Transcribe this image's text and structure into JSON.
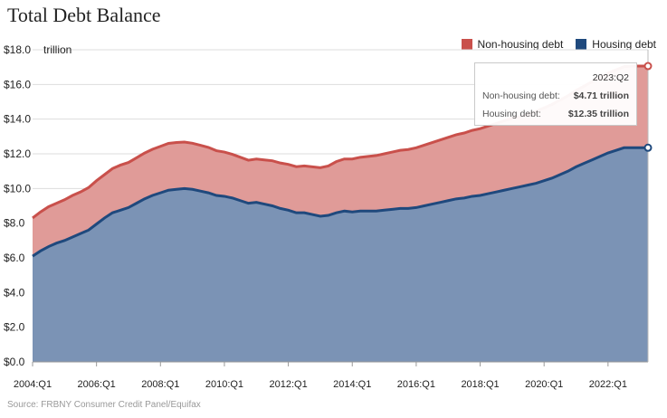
{
  "title": "Total Debt Balance",
  "source": "Source: FRBNY Consumer Credit Panel/Equifax",
  "legend": [
    {
      "label": "Non-housing debt",
      "color": "#c9504b"
    },
    {
      "label": "Housing debt",
      "color": "#1f497d"
    }
  ],
  "tooltip": {
    "period": "2023:Q2",
    "rows": [
      {
        "label": "Non-housing debt:",
        "value": "$4.71 trillion"
      },
      {
        "label": "Housing debt:",
        "value": "$12.35 trillion"
      }
    ]
  },
  "chart_data": {
    "type": "area",
    "stacked": true,
    "ylabel": "trillion",
    "ylim": [
      0,
      18
    ],
    "yticks": [
      "$0.0",
      "$2.0",
      "$4.0",
      "$6.0",
      "$8.0",
      "$10.0",
      "$12.0",
      "$14.0",
      "$16.0",
      "$18.0"
    ],
    "xticks": [
      "2004:Q1",
      "2006:Q1",
      "2008:Q1",
      "2010:Q1",
      "2012:Q1",
      "2014:Q1",
      "2016:Q1",
      "2018:Q1",
      "2020:Q1",
      "2022:Q1"
    ],
    "x_start": "2004:Q1",
    "x_end": "2023:Q2",
    "series": [
      {
        "name": "Housing debt",
        "color": "#1f497d",
        "fill": "#7b93b5",
        "values": [
          6.1,
          6.4,
          6.65,
          6.85,
          7.0,
          7.2,
          7.4,
          7.6,
          7.95,
          8.3,
          8.6,
          8.75,
          8.9,
          9.15,
          9.4,
          9.6,
          9.75,
          9.9,
          9.95,
          10.0,
          9.95,
          9.85,
          9.75,
          9.6,
          9.55,
          9.45,
          9.3,
          9.15,
          9.2,
          9.1,
          9.0,
          8.85,
          8.75,
          8.6,
          8.6,
          8.5,
          8.4,
          8.45,
          8.6,
          8.7,
          8.65,
          8.7,
          8.7,
          8.7,
          8.75,
          8.8,
          8.85,
          8.85,
          8.9,
          9.0,
          9.1,
          9.2,
          9.3,
          9.4,
          9.45,
          9.55,
          9.6,
          9.7,
          9.8,
          9.9,
          10.0,
          10.1,
          10.2,
          10.3,
          10.45,
          10.6,
          10.8,
          11.0,
          11.25,
          11.45,
          11.65,
          11.85,
          12.05,
          12.2,
          12.35,
          12.35,
          12.35,
          12.35
        ]
      },
      {
        "name": "Non-housing debt",
        "color": "#c9504b",
        "fill": "#e09b98",
        "values": [
          2.2,
          2.25,
          2.3,
          2.3,
          2.35,
          2.4,
          2.4,
          2.45,
          2.5,
          2.5,
          2.55,
          2.6,
          2.6,
          2.62,
          2.64,
          2.66,
          2.68,
          2.7,
          2.7,
          2.68,
          2.66,
          2.64,
          2.62,
          2.58,
          2.55,
          2.52,
          2.5,
          2.48,
          2.5,
          2.55,
          2.6,
          2.62,
          2.64,
          2.66,
          2.7,
          2.75,
          2.8,
          2.85,
          2.95,
          3.0,
          3.05,
          3.1,
          3.15,
          3.2,
          3.25,
          3.3,
          3.35,
          3.4,
          3.45,
          3.5,
          3.55,
          3.6,
          3.65,
          3.7,
          3.75,
          3.8,
          3.85,
          3.9,
          3.95,
          4.0,
          4.05,
          4.05,
          4.1,
          4.15,
          4.2,
          4.25,
          4.3,
          4.35,
          4.4,
          4.45,
          4.5,
          4.55,
          4.6,
          4.64,
          4.68,
          4.71,
          4.71,
          4.71
        ]
      }
    ]
  }
}
